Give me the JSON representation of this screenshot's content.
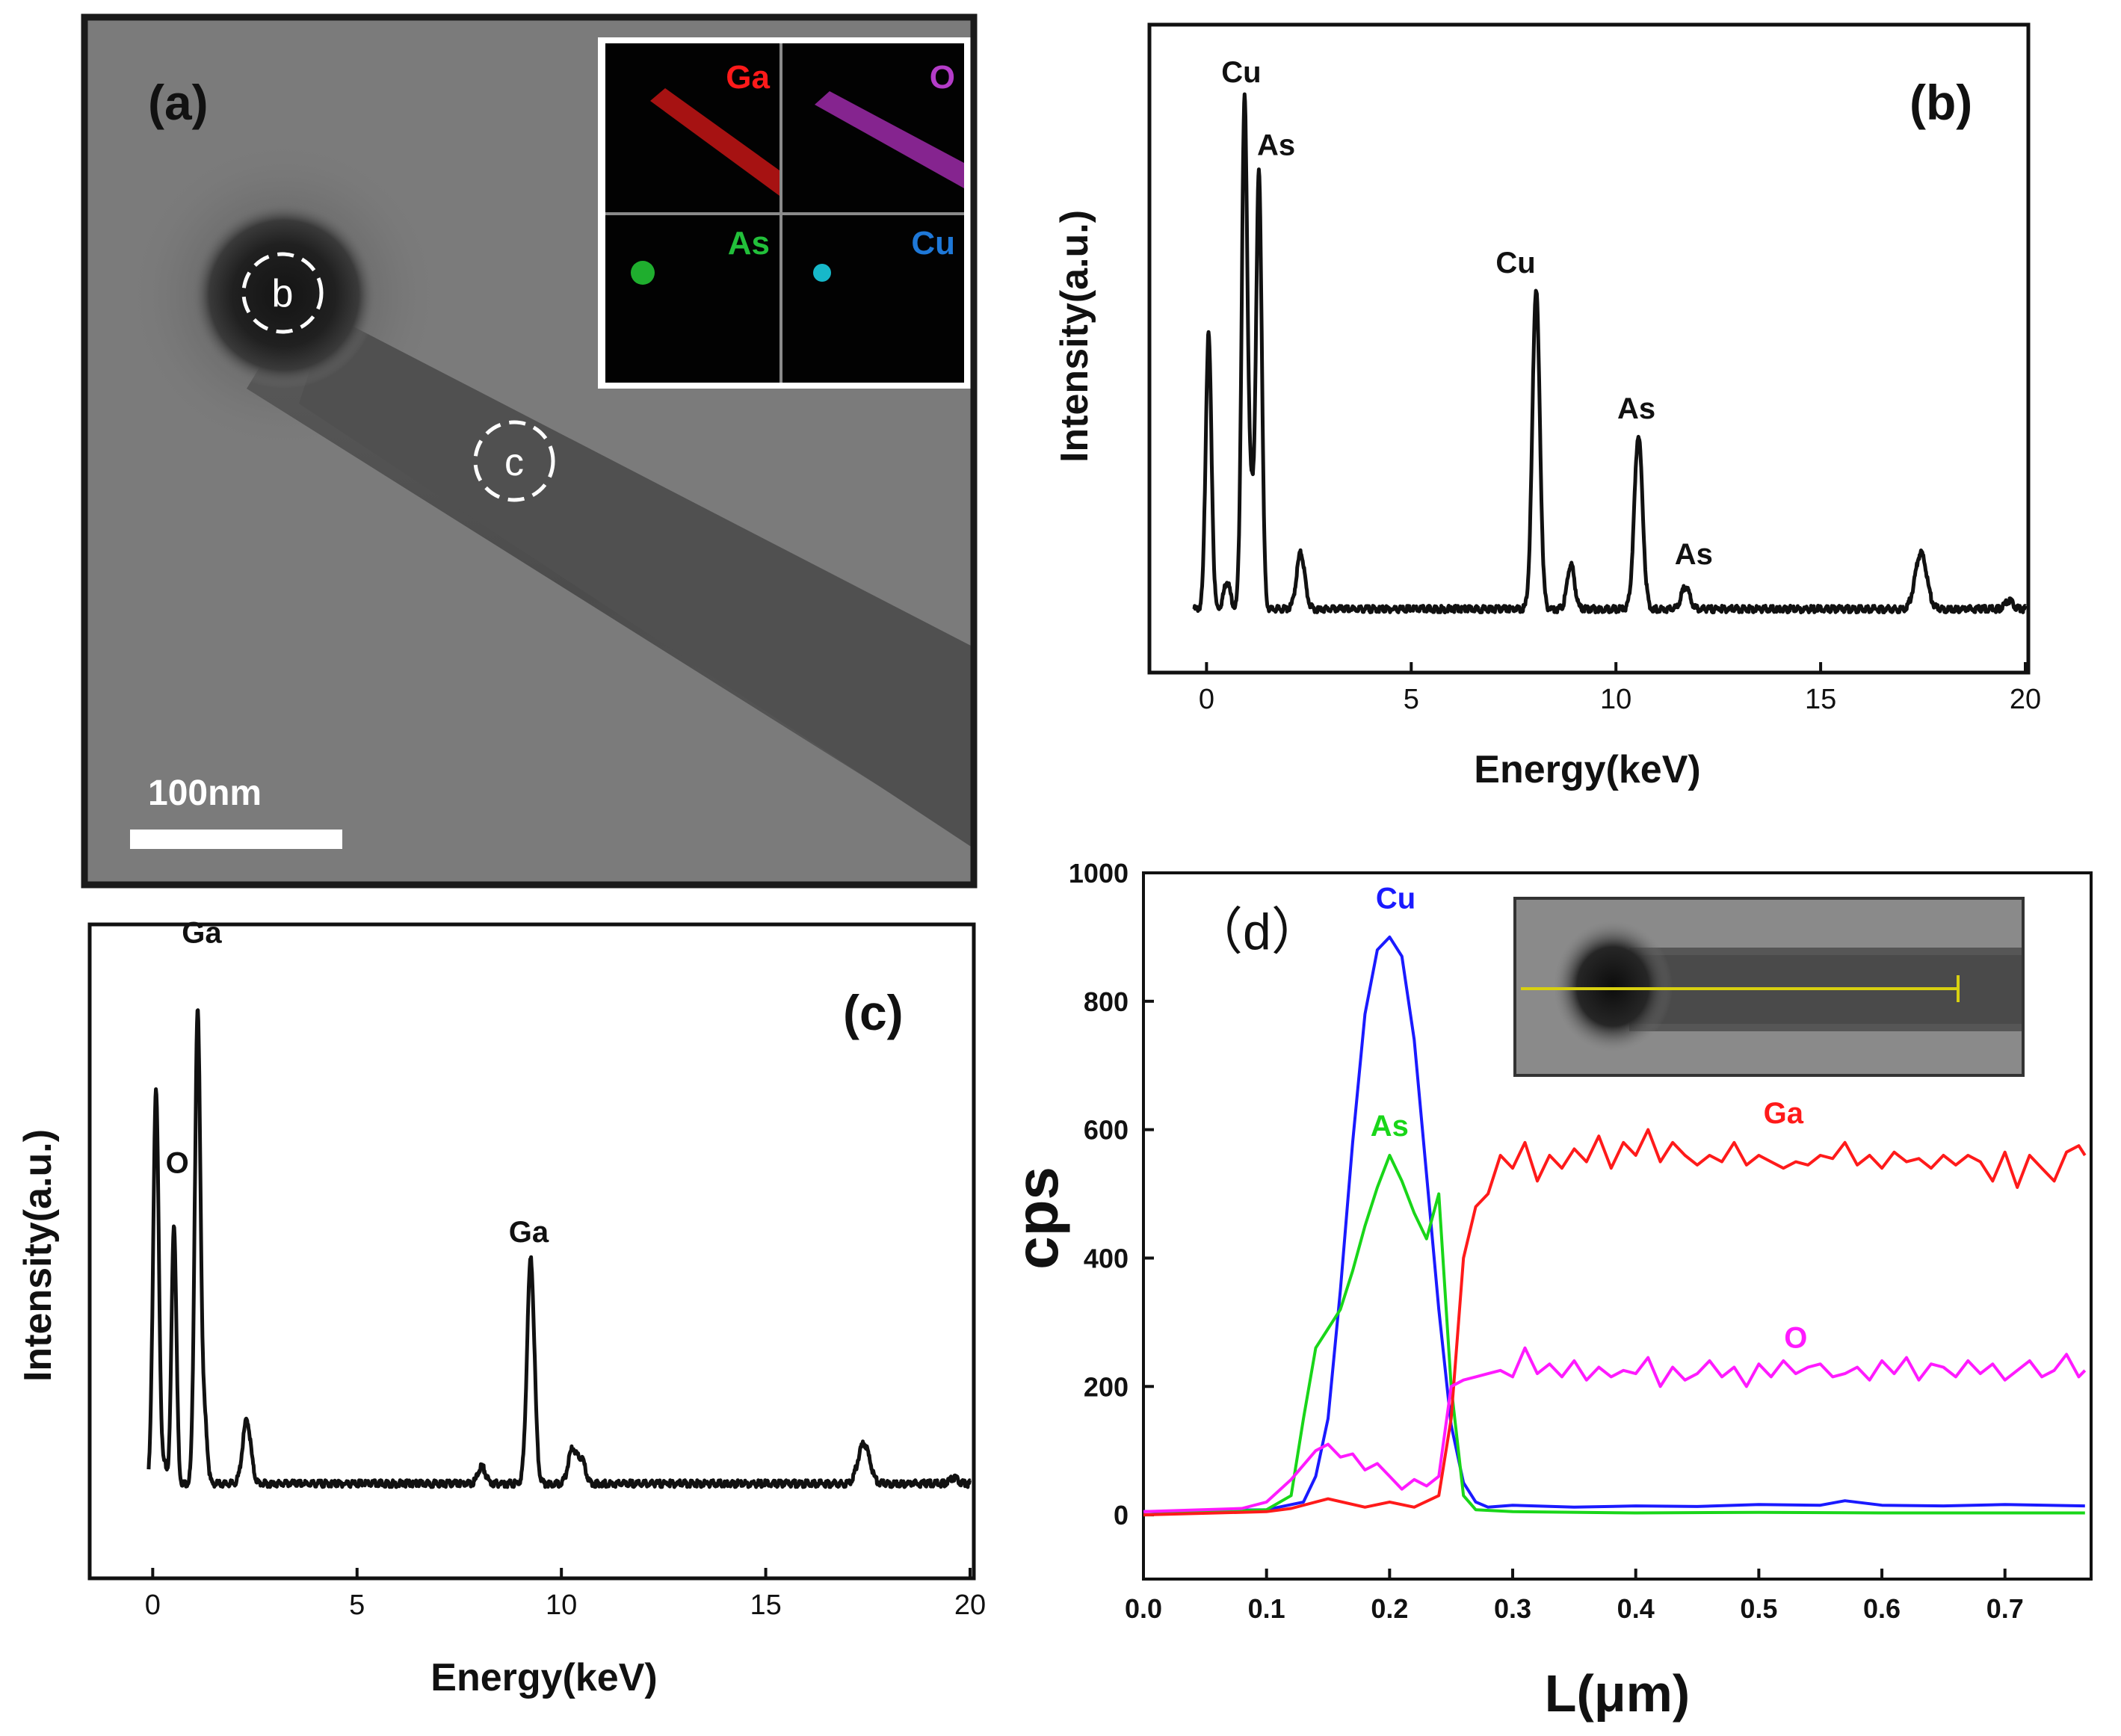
{
  "panel_a": {
    "label": "(a)",
    "scale_bar": "100nm",
    "spot_b": "b",
    "spot_c": "c",
    "maps": [
      {
        "element": "Ga",
        "color": "#ff1a1a"
      },
      {
        "element": "O",
        "color": "#b43cc8"
      },
      {
        "element": "As",
        "color": "#22c03a"
      },
      {
        "element": "Cu",
        "color": "#1e78d8"
      }
    ]
  },
  "chart_data": [
    {
      "id": "b",
      "type": "line",
      "panel_label": "(b)",
      "xlabel": "Energy(keV)",
      "ylabel": "Intensity(a.u.)",
      "xlim": [
        -0.5,
        20
      ],
      "ylim": [
        0,
        1
      ],
      "xticks": [
        0,
        5,
        10,
        15,
        20
      ],
      "baseline": 0.06,
      "peaks": [
        {
          "x": 0.05,
          "h": 0.49,
          "w": 0.07
        },
        {
          "x": 0.5,
          "h": 0.05,
          "w": 0.08
        },
        {
          "x": 0.93,
          "h": 0.91,
          "w": 0.07
        },
        {
          "x": 1.1,
          "h": 0.17,
          "w": 0.06
        },
        {
          "x": 1.28,
          "h": 0.78,
          "w": 0.07
        },
        {
          "x": 2.3,
          "h": 0.1,
          "w": 0.1
        },
        {
          "x": 8.05,
          "h": 0.57,
          "w": 0.09
        },
        {
          "x": 8.9,
          "h": 0.08,
          "w": 0.09
        },
        {
          "x": 10.55,
          "h": 0.31,
          "w": 0.1
        },
        {
          "x": 11.7,
          "h": 0.04,
          "w": 0.1
        },
        {
          "x": 17.45,
          "h": 0.1,
          "w": 0.14
        },
        {
          "x": 19.6,
          "h": 0.015,
          "w": 0.1
        }
      ],
      "annotations": [
        {
          "text": "Cu",
          "x": 0.85,
          "y": 1.0
        },
        {
          "text": "As",
          "x": 1.7,
          "y": 0.87
        },
        {
          "text": "Cu",
          "x": 7.55,
          "y": 0.66
        },
        {
          "text": "As",
          "x": 10.5,
          "y": 0.4
        },
        {
          "text": "As",
          "x": 11.9,
          "y": 0.14
        }
      ]
    },
    {
      "id": "c",
      "type": "line",
      "panel_label": "(c)",
      "xlabel": "Energy(keV)",
      "ylabel": "Intensity(a.u.)",
      "xlim": [
        -0.5,
        20
      ],
      "ylim": [
        0,
        1
      ],
      "xticks": [
        0,
        5,
        10,
        15,
        20
      ],
      "baseline": 0.11,
      "peaks": [
        {
          "x": 0.08,
          "h": 0.68,
          "w": 0.07
        },
        {
          "x": 0.3,
          "h": 0.03,
          "w": 0.05
        },
        {
          "x": 0.52,
          "h": 0.45,
          "w": 0.06
        },
        {
          "x": 1.1,
          "h": 0.82,
          "w": 0.07
        },
        {
          "x": 1.28,
          "h": 0.1,
          "w": 0.06
        },
        {
          "x": 2.3,
          "h": 0.11,
          "w": 0.1
        },
        {
          "x": 8.05,
          "h": 0.03,
          "w": 0.09
        },
        {
          "x": 9.25,
          "h": 0.39,
          "w": 0.09
        },
        {
          "x": 10.27,
          "h": 0.06,
          "w": 0.1
        },
        {
          "x": 10.5,
          "h": 0.04,
          "w": 0.09
        },
        {
          "x": 17.4,
          "h": 0.07,
          "w": 0.14
        },
        {
          "x": 19.6,
          "h": 0.01,
          "w": 0.1
        }
      ],
      "annotations": [
        {
          "text": "Ga",
          "x": 1.2,
          "y": 1.05
        },
        {
          "text": "O",
          "x": 0.6,
          "y": 0.65
        },
        {
          "text": "Ga",
          "x": 9.2,
          "y": 0.53
        }
      ]
    },
    {
      "id": "d",
      "type": "line",
      "panel_label": "（d）",
      "xlabel": "L(μm)",
      "ylabel": "cps",
      "xlim": [
        0,
        0.77
      ],
      "ylim": [
        -100,
        1000
      ],
      "xticks": [
        0.0,
        0.1,
        0.2,
        0.3,
        0.4,
        0.5,
        0.6,
        0.7
      ],
      "yticks": [
        0,
        200,
        400,
        600,
        800,
        1000
      ],
      "series": [
        {
          "name": "Cu",
          "color": "#1a1aff",
          "x": [
            0,
            0.1,
            0.13,
            0.14,
            0.15,
            0.16,
            0.17,
            0.18,
            0.19,
            0.2,
            0.21,
            0.22,
            0.23,
            0.24,
            0.25,
            0.26,
            0.27,
            0.28,
            0.3,
            0.35,
            0.4,
            0.45,
            0.5,
            0.55,
            0.57,
            0.6,
            0.65,
            0.7,
            0.765
          ],
          "y": [
            5,
            8,
            20,
            60,
            150,
            350,
            580,
            780,
            880,
            900,
            870,
            740,
            530,
            320,
            140,
            50,
            20,
            12,
            15,
            12,
            14,
            13,
            16,
            15,
            22,
            15,
            14,
            16,
            14
          ]
        },
        {
          "name": "As",
          "color": "#19d619",
          "x": [
            0,
            0.1,
            0.12,
            0.13,
            0.14,
            0.15,
            0.16,
            0.17,
            0.18,
            0.19,
            0.2,
            0.21,
            0.22,
            0.23,
            0.24,
            0.25,
            0.26,
            0.27,
            0.3,
            0.4,
            0.5,
            0.6,
            0.7,
            0.765
          ],
          "y": [
            0,
            8,
            30,
            150,
            260,
            290,
            320,
            380,
            450,
            510,
            560,
            520,
            470,
            430,
            500,
            200,
            30,
            8,
            5,
            3,
            4,
            3,
            3,
            3
          ]
        },
        {
          "name": "Ga",
          "color": "#ff1a1a",
          "x": [
            0,
            0.1,
            0.12,
            0.15,
            0.18,
            0.2,
            0.22,
            0.24,
            0.25,
            0.26,
            0.27,
            0.28,
            0.29,
            0.3,
            0.31,
            0.32,
            0.33,
            0.34,
            0.35,
            0.36,
            0.37,
            0.38,
            0.39,
            0.4,
            0.41,
            0.42,
            0.43,
            0.44,
            0.45,
            0.46,
            0.47,
            0.48,
            0.49,
            0.5,
            0.51,
            0.52,
            0.53,
            0.54,
            0.55,
            0.56,
            0.57,
            0.58,
            0.59,
            0.6,
            0.61,
            0.62,
            0.63,
            0.64,
            0.65,
            0.66,
            0.67,
            0.68,
            0.69,
            0.7,
            0.71,
            0.72,
            0.73,
            0.74,
            0.75,
            0.76,
            0.765
          ],
          "y": [
            0,
            5,
            10,
            25,
            12,
            20,
            12,
            30,
            150,
            400,
            480,
            500,
            560,
            540,
            580,
            520,
            560,
            540,
            570,
            550,
            590,
            540,
            580,
            560,
            600,
            550,
            580,
            560,
            545,
            560,
            550,
            580,
            545,
            560,
            550,
            540,
            550,
            545,
            560,
            555,
            580,
            545,
            560,
            540,
            565,
            550,
            555,
            540,
            560,
            545,
            560,
            550,
            520,
            565,
            510,
            560,
            540,
            520,
            565,
            575,
            560
          ]
        },
        {
          "name": "O",
          "color": "#ff1aff",
          "x": [
            0,
            0.08,
            0.1,
            0.12,
            0.14,
            0.15,
            0.16,
            0.17,
            0.18,
            0.19,
            0.2,
            0.21,
            0.22,
            0.23,
            0.24,
            0.25,
            0.26,
            0.27,
            0.28,
            0.29,
            0.3,
            0.31,
            0.32,
            0.33,
            0.34,
            0.35,
            0.36,
            0.37,
            0.38,
            0.39,
            0.4,
            0.41,
            0.42,
            0.43,
            0.44,
            0.45,
            0.46,
            0.47,
            0.48,
            0.49,
            0.5,
            0.51,
            0.52,
            0.53,
            0.54,
            0.55,
            0.56,
            0.57,
            0.58,
            0.59,
            0.6,
            0.61,
            0.62,
            0.63,
            0.64,
            0.65,
            0.66,
            0.67,
            0.68,
            0.69,
            0.7,
            0.71,
            0.72,
            0.73,
            0.74,
            0.75,
            0.76,
            0.765
          ],
          "y": [
            5,
            10,
            20,
            55,
            100,
            110,
            90,
            95,
            70,
            80,
            60,
            40,
            55,
            45,
            60,
            200,
            210,
            215,
            220,
            225,
            215,
            260,
            220,
            235,
            215,
            240,
            210,
            230,
            215,
            225,
            220,
            245,
            200,
            230,
            210,
            220,
            240,
            215,
            230,
            200,
            235,
            215,
            240,
            220,
            230,
            235,
            215,
            220,
            230,
            210,
            240,
            220,
            245,
            210,
            235,
            230,
            215,
            240,
            220,
            235,
            210,
            225,
            240,
            215,
            225,
            250,
            215,
            225
          ]
        }
      ],
      "annotations": [
        {
          "text": "Cu",
          "x": 0.205,
          "y": 945,
          "color": "#1a1aff"
        },
        {
          "text": "As",
          "x": 0.2,
          "y": 590,
          "color": "#19d619"
        },
        {
          "text": "Ga",
          "x": 0.52,
          "y": 610,
          "color": "#ff1a1a"
        },
        {
          "text": "O",
          "x": 0.53,
          "y": 260,
          "color": "#ff1aff"
        }
      ]
    }
  ]
}
